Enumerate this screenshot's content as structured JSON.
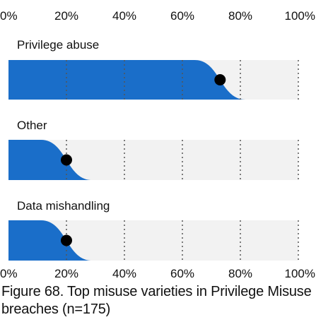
{
  "chart_data": {
    "type": "bar",
    "title": "Figure 68. Top misuse varieties in Privilege Misuse breaches (n=175)",
    "xlabel": "",
    "ylabel": "",
    "xlim": [
      0,
      100
    ],
    "ticks": [
      "0%",
      "20%",
      "40%",
      "60%",
      "80%",
      "100%"
    ],
    "tick_values": [
      0,
      20,
      40,
      60,
      80,
      100
    ],
    "grid": true,
    "categories": [
      "Privilege abuse",
      "Other",
      "Data mishandling"
    ],
    "values": [
      73,
      20,
      20
    ],
    "colors": {
      "bar": "#1a6ec9",
      "track": "#f2f2f2",
      "dot": "#000000",
      "grid": "#555555"
    }
  }
}
